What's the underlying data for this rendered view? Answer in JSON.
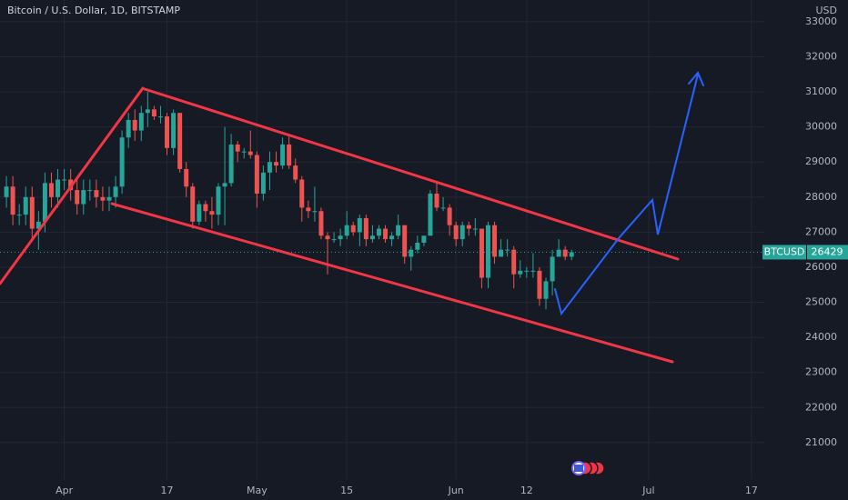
{
  "chart_data": {
    "type": "candlestick",
    "title": "Bitcoin / U.S. Dollar, 1D, BITSTAMP",
    "currency_label": "USD",
    "last_price_label": "BTCUSD",
    "up_color": "#26a69a",
    "down_color": "#ef5350",
    "grid": true,
    "xlim": [
      -9,
      110
    ],
    "xticks": [
      {
        "value": 1,
        "label": "Apr"
      },
      {
        "value": 17,
        "label": "17"
      },
      {
        "value": 31,
        "label": "May"
      },
      {
        "value": 45,
        "label": "15"
      },
      {
        "value": 62,
        "label": "Jun"
      },
      {
        "value": 73,
        "label": "12"
      },
      {
        "value": 92,
        "label": "Jul"
      },
      {
        "value": 108,
        "label": "17"
      }
    ],
    "ylim": [
      19960,
      33620
    ],
    "yticks": [
      21000,
      22000,
      23000,
      24000,
      25000,
      26000,
      27000,
      28000,
      29000,
      30000,
      31000,
      32000,
      33000
    ],
    "series": [
      {
        "name": "BTCUSD",
        "x": [
          -8,
          -7,
          -6,
          -5,
          -4,
          -3,
          -2,
          -1,
          0,
          1,
          2,
          3,
          4,
          5,
          6,
          7,
          8,
          9,
          10,
          11,
          12,
          13,
          14,
          15,
          16,
          17,
          18,
          19,
          20,
          21,
          22,
          23,
          24,
          25,
          26,
          27,
          28,
          29,
          30,
          31,
          32,
          33,
          34,
          35,
          36,
          37,
          38,
          39,
          40,
          41,
          42,
          43,
          44,
          45,
          46,
          47,
          48,
          49,
          50,
          51,
          52,
          53,
          54,
          55,
          56,
          57,
          58,
          59,
          60,
          61,
          62,
          63,
          64,
          65,
          66,
          67,
          68,
          69,
          70,
          71,
          72,
          73,
          74,
          75,
          76,
          77,
          78,
          79,
          80
        ],
        "open": [
          28000,
          28300,
          27500,
          27500,
          28000,
          27100,
          27300,
          28400,
          28000,
          28500,
          28500,
          28200,
          27800,
          28200,
          28200,
          28000,
          27900,
          28000,
          28300,
          29700,
          30200,
          29900,
          30400,
          30500,
          30300,
          30300,
          29400,
          30400,
          28800,
          28300,
          27300,
          27800,
          27600,
          27500,
          28300,
          28400,
          29500,
          29300,
          29300,
          29200,
          28100,
          28700,
          29000,
          28900,
          29500,
          28900,
          28500,
          27700,
          27600,
          27600,
          26900,
          26800,
          26800,
          26900,
          27200,
          27000,
          27400,
          26800,
          26900,
          27100,
          26800,
          26900,
          27200,
          26300,
          26500,
          26700,
          26900,
          28100,
          27700,
          27700,
          27200,
          26800,
          27200,
          27100,
          27100,
          25700,
          27200,
          26300,
          26500,
          26500,
          25800,
          25900,
          25900,
          25900,
          25100,
          25600,
          26300,
          26500,
          26300
        ],
        "high": [
          28600,
          28600,
          27800,
          28300,
          28300,
          27600,
          28700,
          28700,
          28800,
          28800,
          28800,
          28500,
          28500,
          28500,
          28500,
          28300,
          28300,
          28600,
          29900,
          30400,
          30500,
          30600,
          31000,
          30600,
          30600,
          30400,
          30500,
          30400,
          29000,
          28400,
          27900,
          27900,
          28000,
          28400,
          30000,
          29800,
          29600,
          29400,
          29900,
          29300,
          28900,
          29300,
          29300,
          29700,
          29800,
          29100,
          28600,
          27900,
          28300,
          27700,
          27000,
          27000,
          27100,
          27600,
          27300,
          27500,
          27500,
          27200,
          27200,
          27200,
          27000,
          27500,
          27200,
          26600,
          26900,
          26900,
          28200,
          28400,
          28000,
          27800,
          27300,
          27300,
          27300,
          27400,
          27100,
          27300,
          27300,
          26800,
          26800,
          26600,
          26200,
          26000,
          26400,
          26000,
          25700,
          26500,
          26800,
          26600,
          26500
        ],
        "low": [
          27700,
          27200,
          27200,
          27200,
          26800,
          26500,
          27000,
          27700,
          27700,
          28200,
          27900,
          27500,
          27500,
          27900,
          27700,
          27600,
          27600,
          27700,
          28100,
          29400,
          29600,
          29600,
          30000,
          30200,
          30100,
          29200,
          29200,
          28700,
          28000,
          27100,
          27200,
          27300,
          27100,
          27200,
          27200,
          28300,
          29000,
          29100,
          29100,
          27700,
          27900,
          28200,
          28700,
          28800,
          28800,
          28400,
          27300,
          27400,
          27300,
          26800,
          25800,
          26700,
          26600,
          26800,
          26900,
          26600,
          26600,
          26700,
          26800,
          26700,
          26600,
          26800,
          26100,
          25900,
          26400,
          26600,
          26900,
          27600,
          27600,
          26900,
          26600,
          26600,
          26900,
          26900,
          25400,
          25400,
          26100,
          26300,
          26300,
          25400,
          25700,
          25700,
          25700,
          24900,
          24800,
          25200,
          26300,
          26200,
          26200
        ],
        "close": [
          28300,
          27500,
          27500,
          28000,
          27100,
          27300,
          28400,
          28000,
          28500,
          28500,
          28200,
          27800,
          28200,
          28200,
          28000,
          27900,
          28000,
          28300,
          29700,
          30200,
          29900,
          30400,
          30500,
          30300,
          30300,
          29400,
          30400,
          28800,
          28300,
          27300,
          27800,
          27600,
          27500,
          28300,
          28400,
          29500,
          29300,
          29300,
          29200,
          28100,
          28700,
          29000,
          28900,
          29500,
          28900,
          28500,
          27700,
          27600,
          27600,
          26900,
          26800,
          26800,
          26900,
          27200,
          27000,
          27400,
          26800,
          26900,
          27100,
          26800,
          26900,
          27200,
          26300,
          26500,
          26700,
          26900,
          28100,
          27700,
          27700,
          27200,
          26800,
          27200,
          27100,
          27100,
          25700,
          27200,
          26300,
          26500,
          26500,
          25800,
          25900,
          25900,
          25900,
          25100,
          25600,
          26300,
          26500,
          26300,
          26429
        ]
      }
    ]
  }
}
